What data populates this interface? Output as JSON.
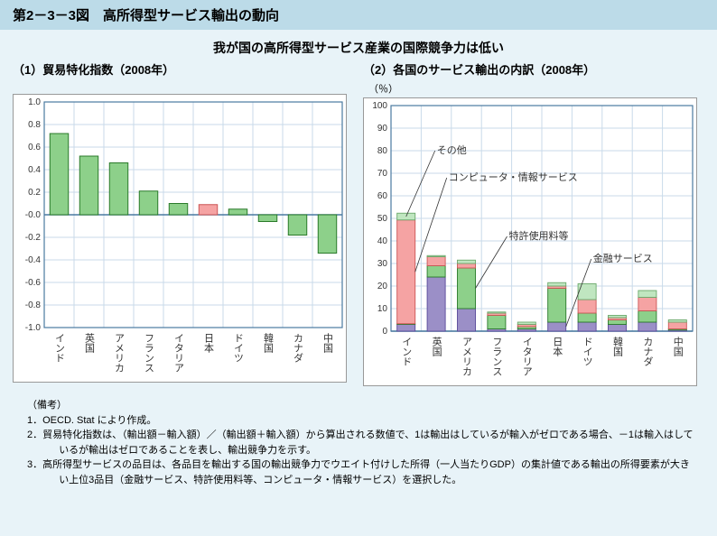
{
  "header": {
    "title": "第2－3－3図　高所得型サービス輸出の動向"
  },
  "subtitle": "我が国の高所得型サービス産業の国際競争力は低い",
  "chart1": {
    "title": "（1）貿易特化指数（2008年）",
    "type": "bar",
    "ylim": [
      -1.0,
      1.0
    ],
    "ytick_step": 0.2,
    "categories": [
      "インド",
      "英国",
      "アメリカ",
      "フランス",
      "イタリア",
      "日本",
      "ドイツ",
      "韓国",
      "カナダ",
      "中国"
    ],
    "values": [
      0.72,
      0.52,
      0.46,
      0.21,
      0.1,
      0.09,
      0.05,
      -0.06,
      -0.18,
      -0.34
    ],
    "bar_fill": "#8dd08a",
    "bar_stroke": "#2a7a2a",
    "japan_fill": "#f5a3a3",
    "japan_stroke": "#cc5555",
    "japan_index": 5,
    "grid_color": "#c9daea",
    "axis_color": "#4a7aa0",
    "background": "#ffffff",
    "label_fontsize": 11,
    "tick_fontsize": 10
  },
  "chart2": {
    "title": "（2）各国のサービス輸出の内訳（2008年）",
    "unit": "（％）",
    "type": "stacked-bar",
    "ylim": [
      0,
      100
    ],
    "ytick_step": 10,
    "categories": [
      "インド",
      "英国",
      "アメリカ",
      "フランス",
      "イタリア",
      "日本",
      "ドイツ",
      "韓国",
      "カナダ",
      "中国"
    ],
    "series": [
      {
        "name": "金融サービス",
        "color_fill": "#9b8fc7",
        "color_stroke": "#5a4a9a",
        "values": [
          3,
          24,
          10,
          1,
          1,
          4,
          4,
          3,
          4,
          0.5
        ]
      },
      {
        "name": "特許使用料等",
        "color_fill": "#8dd08a",
        "color_stroke": "#2a7a2a",
        "values": [
          0.3,
          5,
          18,
          6,
          1,
          15,
          4,
          2,
          5,
          0.5
        ]
      },
      {
        "name": "コンピュータ・情報サービス",
        "color_fill": "#f5a3a3",
        "color_stroke": "#cc5555",
        "values": [
          46,
          4,
          2,
          1,
          1,
          1,
          6,
          1,
          6,
          3
        ]
      },
      {
        "name": "その他",
        "color_fill": "#c0e6c0",
        "color_stroke": "#6aa86a",
        "values": [
          3,
          0.5,
          1.5,
          0.5,
          1,
          1.5,
          7,
          1,
          3,
          1
        ]
      }
    ],
    "grid_color": "#c9daea",
    "axis_color": "#4a7aa0",
    "background": "#ffffff",
    "label_fontsize": 11,
    "tick_fontsize": 10,
    "legend_labels": {
      "other": "その他",
      "computer": "コンピュータ・情報サービス",
      "patent": "特許使用料等",
      "finance": "金融サービス"
    }
  },
  "notes": {
    "heading": "（備考）",
    "items": [
      "1．OECD. Stat により作成。",
      "2．貿易特化指数は、（輸出額－輸入額）／（輸出額＋輸入額）から算出される数値で、1は輸出はしているが輸入がゼロである場合、－1は輸入はしているが輸出はゼロであることを表し、輸出競争力を示す。",
      "3．高所得型サービスの品目は、各品目を輸出する国の輸出競争力でウエイト付けした所得（一人当たりGDP）の集計値である輸出の所得要素が大きい上位3品目（金融サービス、特許使用料等、コンピュータ・情報サービス）を選択した。"
    ]
  }
}
